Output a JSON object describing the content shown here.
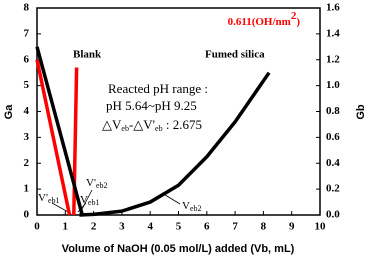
{
  "chart_data": {
    "type": "line",
    "title": {
      "main": "0.611(OH/nm",
      "sup": "2",
      "end": ")"
    },
    "xlabel": "Volume of NaOH (0.05 mol/L) added (Vb, mL)",
    "ylabel": "Ga",
    "y2label": "Gb",
    "xlim": [
      0,
      10
    ],
    "xticks": [
      0,
      1,
      2,
      3,
      4,
      5,
      6,
      7,
      8,
      9,
      10
    ],
    "ylim": [
      0,
      8
    ],
    "yticks": [
      0,
      1,
      2,
      3,
      4,
      5,
      6,
      7,
      8
    ],
    "y2lim": [
      0,
      1.6
    ],
    "y2ticks": [
      {
        "value": 0,
        "label": "0.0"
      },
      0.2,
      0.4,
      0.6,
      0.8,
      {
        "value": 1,
        "label": "1.0"
      },
      1.2,
      1.4,
      1.6
    ],
    "series": [
      {
        "name": "Blank",
        "color": "#ff0000",
        "x": [
          0,
          1.15
        ],
        "values": [
          6.0,
          0
        ]
      },
      {
        "color": "#ff0000",
        "axis": "y2",
        "x": [
          1.3,
          1.4
        ],
        "values": [
          0,
          1.14
        ]
      },
      {
        "name": "Fumed silica",
        "color": "#000000",
        "x": [
          0,
          1.6
        ],
        "values": [
          6.5,
          0
        ]
      },
      {
        "color": "#000000",
        "axis": "y2",
        "x": [
          1.5,
          2,
          3,
          4,
          5,
          6,
          7,
          8.2
        ],
        "values": [
          0,
          0.005,
          0.03,
          0.1,
          0.23,
          0.45,
          0.72,
          1.1
        ]
      }
    ],
    "annotations": {
      "range_title": "Reacted pH range :",
      "range": "pH 5.64~pH 9.25",
      "delta": {
        "main": "△V",
        "sub1": "eb",
        "mid": "-△V'",
        "sub2": "eb",
        "end": " : 2.675"
      },
      "veb1_prime": {
        "main": "V'",
        "sub": "eb1"
      },
      "veb2_prime": {
        "main": "V'",
        "sub": "eb2"
      },
      "veb1": {
        "main": "V",
        "sub": "eb1"
      },
      "veb2": {
        "main": "V",
        "sub": "eb2"
      }
    }
  }
}
